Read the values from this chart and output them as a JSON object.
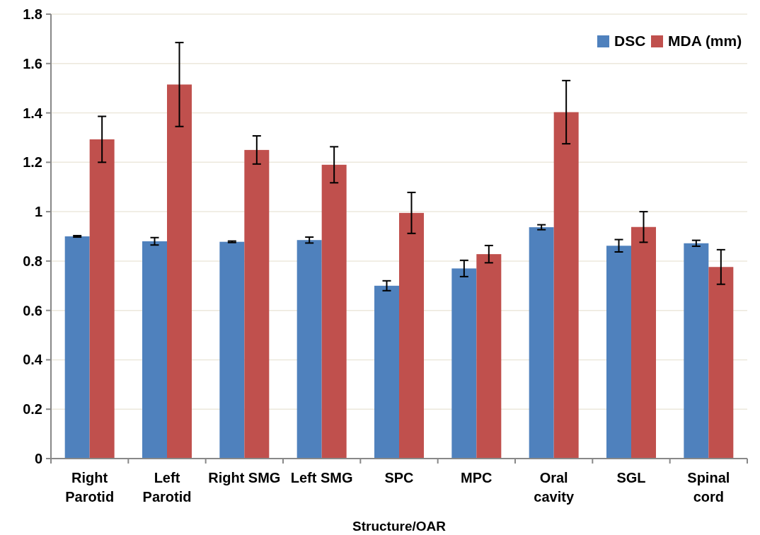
{
  "chart_data": {
    "type": "bar",
    "xlabel": "Structure/OAR",
    "categories": [
      "Right Parotid",
      "Left Parotid",
      "Right SMG",
      "Left SMG",
      "SPC",
      "MPC",
      "Oral cavity",
      "SGL",
      "Spinal cord"
    ],
    "series": [
      {
        "name": "DSC",
        "color": "#4f81bd",
        "values": [
          0.9,
          0.88,
          0.878,
          0.885,
          0.7,
          0.77,
          0.937,
          0.862,
          0.872
        ],
        "errors": [
          0.003,
          0.015,
          0.003,
          0.012,
          0.02,
          0.033,
          0.01,
          0.025,
          0.012
        ]
      },
      {
        "name": "MDA (mm)",
        "color": "#c0504d",
        "values": [
          1.293,
          1.515,
          1.25,
          1.19,
          0.995,
          0.828,
          1.403,
          0.938,
          0.776
        ],
        "errors": [
          0.093,
          0.17,
          0.057,
          0.073,
          0.083,
          0.035,
          0.128,
          0.062,
          0.07
        ]
      }
    ],
    "ylim": [
      0,
      1.8
    ],
    "yticks": [
      0,
      0.2,
      0.4,
      0.6,
      0.8,
      1,
      1.2,
      1.4,
      1.6,
      1.8
    ],
    "grid": "y",
    "legend": "top right"
  }
}
